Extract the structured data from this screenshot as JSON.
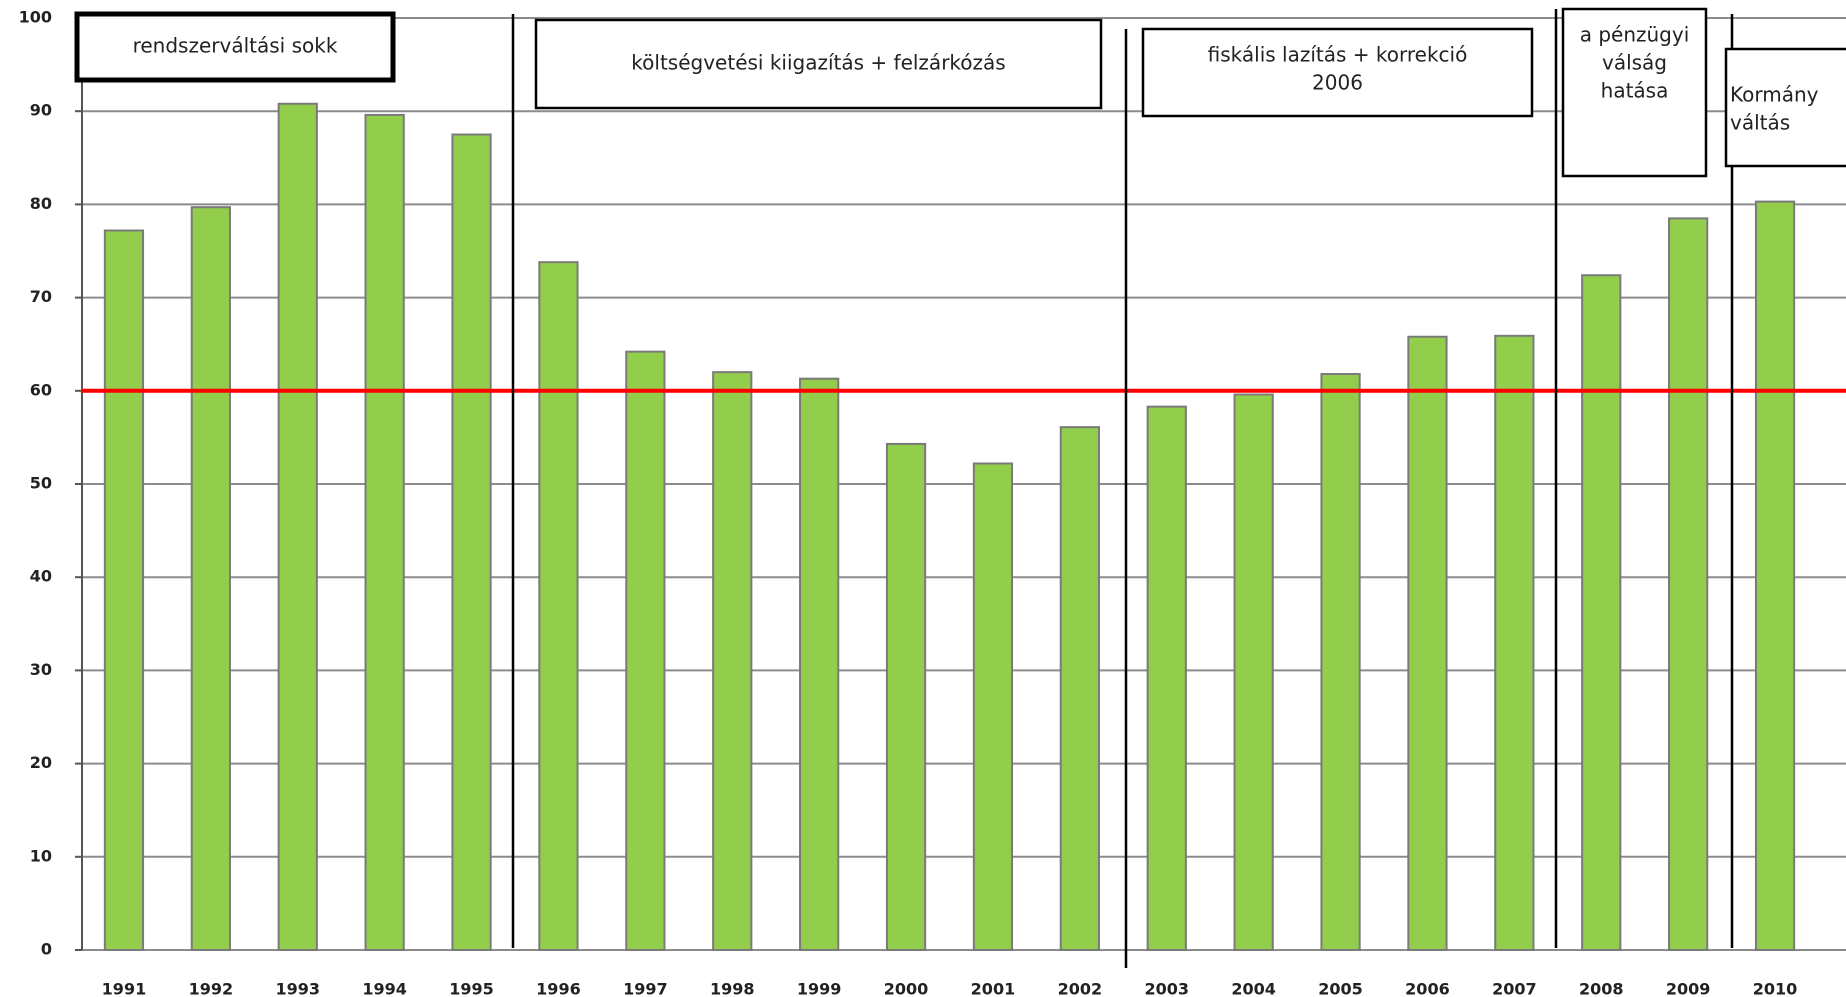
{
  "chart_data": {
    "type": "bar",
    "categories": [
      "1991",
      "1992",
      "1993",
      "1994",
      "1995",
      "1996",
      "1997",
      "1998",
      "1999",
      "2000",
      "2001",
      "2002",
      "2003",
      "2004",
      "2005",
      "2006",
      "2007",
      "2008",
      "2009",
      "2010"
    ],
    "values": [
      77.2,
      79.7,
      90.8,
      89.6,
      87.5,
      73.8,
      64.2,
      62.0,
      61.3,
      54.3,
      52.2,
      56.1,
      58.3,
      59.6,
      61.8,
      65.8,
      65.9,
      72.4,
      78.5,
      80.3
    ],
    "color": "#92cd4c",
    "ylim": [
      0,
      100
    ],
    "yticks": [
      0,
      10,
      20,
      30,
      40,
      50,
      60,
      70,
      80,
      90,
      100
    ],
    "grid": true,
    "reference_line": {
      "value": 60,
      "color": "#ff0000"
    },
    "annotations": [
      {
        "lines": [
          "rendszerváltási sokk"
        ]
      },
      {
        "lines": [
          "költségvetési kiigazítás + felzárkózás"
        ]
      },
      {
        "lines": [
          "fiskális lazítás + korrekció",
          "2006"
        ]
      },
      {
        "lines": [
          "a pénzügyi",
          "válság",
          "hatása"
        ]
      },
      {
        "lines": [
          "Kormány",
          "váltás"
        ]
      }
    ]
  }
}
